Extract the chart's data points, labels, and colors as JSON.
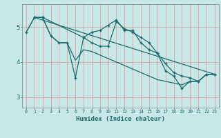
{
  "xlabel": "Humidex (Indice chaleur)",
  "ylabel": "",
  "background_color": "#c8e8e8",
  "grid_color": "#e8a0a0",
  "line_color": "#1a6b6b",
  "xlim": [
    -0.5,
    23.5
  ],
  "ylim": [
    2.7,
    5.65
  ],
  "yticks": [
    3,
    4,
    5
  ],
  "xticks": [
    0,
    1,
    2,
    3,
    4,
    5,
    6,
    7,
    8,
    9,
    10,
    11,
    12,
    13,
    14,
    15,
    16,
    17,
    18,
    19,
    20,
    21,
    22,
    23
  ],
  "series": [
    {
      "x": [
        0,
        1,
        2,
        3,
        4,
        5,
        6,
        7,
        8,
        9,
        10,
        11,
        12,
        13,
        14,
        15,
        16,
        17,
        18,
        19,
        20,
        21,
        22,
        23
      ],
      "y": [
        4.85,
        5.27,
        5.27,
        4.75,
        4.55,
        4.55,
        3.55,
        4.7,
        4.85,
        4.9,
        5.05,
        5.2,
        4.9,
        4.9,
        4.55,
        4.35,
        4.25,
        3.75,
        3.6,
        3.25,
        3.45,
        3.45,
        3.65,
        3.65
      ],
      "marker": "+"
    },
    {
      "x": [
        0,
        1,
        2,
        3,
        4,
        5,
        6,
        7,
        8,
        9,
        10,
        11,
        12,
        13,
        14,
        15,
        16,
        17,
        18,
        19,
        20,
        21,
        22,
        23
      ],
      "y": [
        4.85,
        5.27,
        5.27,
        4.75,
        4.55,
        4.55,
        4.05,
        4.35,
        4.3,
        4.2,
        4.1,
        4.0,
        3.9,
        3.8,
        3.7,
        3.6,
        3.5,
        3.45,
        3.4,
        3.35,
        3.45,
        3.45,
        3.65,
        3.65
      ],
      "marker": null
    },
    {
      "x": [
        1,
        2,
        7,
        8,
        9,
        10,
        11,
        12,
        13,
        14,
        15,
        16,
        17,
        18,
        19,
        20,
        21,
        22,
        23
      ],
      "y": [
        5.27,
        5.27,
        4.7,
        4.55,
        4.45,
        4.45,
        5.15,
        4.95,
        4.85,
        4.7,
        4.55,
        4.25,
        3.95,
        3.7,
        3.6,
        3.55,
        3.45,
        3.65,
        3.65
      ],
      "marker": "+"
    },
    {
      "x": [
        1,
        23
      ],
      "y": [
        5.27,
        3.65
      ],
      "marker": null
    }
  ]
}
